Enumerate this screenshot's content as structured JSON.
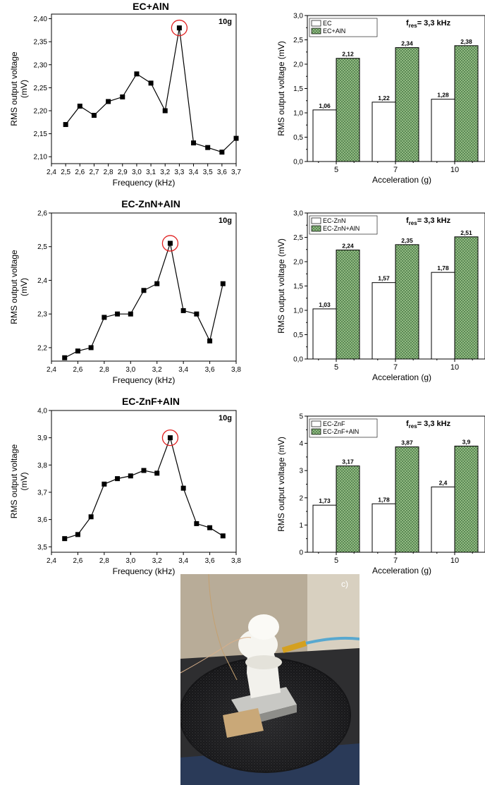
{
  "chart_data": [
    {
      "type": "line",
      "title": "EC+AlN",
      "xlabel": "Frequency (kHz)",
      "ylabel": "RMS output voltage (mV)",
      "annotation": "10g",
      "x": [
        2.5,
        2.6,
        2.7,
        2.8,
        2.9,
        3.0,
        3.1,
        3.2,
        3.3,
        3.4,
        3.5,
        3.6,
        3.7
      ],
      "y": [
        2.17,
        2.21,
        2.19,
        2.22,
        2.23,
        2.28,
        2.26,
        2.2,
        2.38,
        2.13,
        2.12,
        2.11,
        2.14
      ],
      "xlim": [
        2.4,
        3.7
      ],
      "ylim": [
        2.085,
        2.41
      ],
      "xticks": [
        "2,4",
        "2,5",
        "2,6",
        "2,7",
        "2,8",
        "2,9",
        "3,0",
        "3,1",
        "3,2",
        "3,3",
        "3,4",
        "3,5",
        "3,6",
        "3,7"
      ],
      "xtick_values": [
        2.4,
        2.5,
        2.6,
        2.7,
        2.8,
        2.9,
        3.0,
        3.1,
        3.2,
        3.3,
        3.4,
        3.5,
        3.6,
        3.7
      ],
      "yticks": [
        "2,10",
        "2,15",
        "2,20",
        "2,25",
        "2,30",
        "2,35",
        "2,40"
      ],
      "ytick_values": [
        2.1,
        2.15,
        2.2,
        2.25,
        2.3,
        2.35,
        2.4
      ],
      "highlight_x": 3.3
    },
    {
      "type": "bar",
      "title": "",
      "xlabel": "Acceleration (g)",
      "ylabel": "RMS output voltage (mV)",
      "annotation_main": "f",
      "annotation_sub": "res",
      "annotation_rest": "= 3,3 kHz",
      "categories": [
        "5",
        "7",
        "10"
      ],
      "series": [
        {
          "name": "EC",
          "values": [
            1.06,
            1.22,
            1.28
          ],
          "labels": [
            "1,06",
            "1,22",
            "1,28"
          ]
        },
        {
          "name": "EC+AlN",
          "values": [
            2.12,
            2.34,
            2.38
          ],
          "labels": [
            "2,12",
            "2,34",
            "2,38"
          ]
        }
      ],
      "ylim": [
        0,
        3.0
      ],
      "yticks": [
        "0,0",
        "0,5",
        "1,0",
        "1,5",
        "2,0",
        "2,5",
        "3,0"
      ],
      "ytick_values": [
        0,
        0.5,
        1.0,
        1.5,
        2.0,
        2.5,
        3.0
      ]
    },
    {
      "type": "line",
      "title": "EC-ZnN+AlN",
      "xlabel": "Frequency (kHz)",
      "ylabel": "RMS output voltage (mV)",
      "annotation": "10g",
      "x": [
        2.5,
        2.6,
        2.7,
        2.8,
        2.9,
        3.0,
        3.1,
        3.2,
        3.3,
        3.4,
        3.5,
        3.6,
        3.7
      ],
      "y": [
        2.17,
        2.19,
        2.2,
        2.29,
        2.3,
        2.3,
        2.37,
        2.39,
        2.51,
        2.31,
        2.3,
        2.22,
        2.39
      ],
      "xlim": [
        2.4,
        3.8
      ],
      "ylim": [
        2.16,
        2.6
      ],
      "xticks": [
        "2,4",
        "2,6",
        "2,8",
        "3,0",
        "3,2",
        "3,4",
        "3,6",
        "3,8"
      ],
      "xtick_values": [
        2.4,
        2.6,
        2.8,
        3.0,
        3.2,
        3.4,
        3.6,
        3.8
      ],
      "yticks": [
        "2,2",
        "2,3",
        "2,4",
        "2,5",
        "2,6"
      ],
      "ytick_values": [
        2.2,
        2.3,
        2.4,
        2.5,
        2.6
      ],
      "highlight_x": 3.3
    },
    {
      "type": "bar",
      "title": "",
      "xlabel": "Acceleration (g)",
      "ylabel": "RMS output voltage (mV)",
      "annotation_main": "f",
      "annotation_sub": "res",
      "annotation_rest": "= 3,3 kHz",
      "categories": [
        "5",
        "7",
        "10"
      ],
      "series": [
        {
          "name": "EC-ZnN",
          "values": [
            1.03,
            1.57,
            1.78
          ],
          "labels": [
            "1,03",
            "1,57",
            "1,78"
          ]
        },
        {
          "name": "EC-ZnN+AlN",
          "values": [
            2.24,
            2.35,
            2.51
          ],
          "labels": [
            "2,24",
            "2,35",
            "2,51"
          ]
        }
      ],
      "ylim": [
        0,
        3.0
      ],
      "yticks": [
        "0,0",
        "0,5",
        "1,0",
        "1,5",
        "2,0",
        "2,5",
        "3,0"
      ],
      "ytick_values": [
        0,
        0.5,
        1.0,
        1.5,
        2.0,
        2.5,
        3.0
      ]
    },
    {
      "type": "line",
      "title": "EC-ZnF+AlN",
      "xlabel": "Frequency (kHz)",
      "ylabel": "RMS output voltage (mV)",
      "annotation": "10g",
      "x": [
        2.5,
        2.6,
        2.7,
        2.8,
        2.9,
        3.0,
        3.1,
        3.2,
        3.3,
        3.4,
        3.5,
        3.6,
        3.7
      ],
      "y": [
        3.53,
        3.545,
        3.61,
        3.73,
        3.75,
        3.76,
        3.78,
        3.77,
        3.9,
        3.715,
        3.585,
        3.57,
        3.54
      ],
      "xlim": [
        2.4,
        3.8
      ],
      "ylim": [
        3.48,
        4.0
      ],
      "xticks": [
        "2,4",
        "2,6",
        "2,8",
        "3,0",
        "3,2",
        "3,4",
        "3,6",
        "3,8"
      ],
      "xtick_values": [
        2.4,
        2.6,
        2.8,
        3.0,
        3.2,
        3.4,
        3.6,
        3.8
      ],
      "yticks": [
        "3,5",
        "3,6",
        "3,7",
        "3,8",
        "3,9",
        "4,0"
      ],
      "ytick_values": [
        3.5,
        3.6,
        3.7,
        3.8,
        3.9,
        4.0
      ],
      "highlight_x": 3.3
    },
    {
      "type": "bar",
      "title": "",
      "xlabel": "Acceleration (g)",
      "ylabel": "RMS output voltage (mV)",
      "annotation_main": "f",
      "annotation_sub": "res",
      "annotation_rest": "= 3,3 kHz",
      "categories": [
        "5",
        "7",
        "10"
      ],
      "series": [
        {
          "name": "EC-ZnF",
          "values": [
            1.73,
            1.78,
            2.4
          ],
          "labels": [
            "1,73",
            "1,78",
            "2,4"
          ]
        },
        {
          "name": "EC-ZnF+AlN",
          "values": [
            3.17,
            3.87,
            3.9
          ],
          "labels": [
            "3,17",
            "3,87",
            "3,9"
          ]
        }
      ],
      "ylim": [
        0,
        5
      ],
      "yticks": [
        "0",
        "1",
        "2",
        "3",
        "4",
        "5"
      ],
      "ytick_values": [
        0,
        1,
        2,
        3,
        4,
        5
      ]
    }
  ],
  "photo": {
    "panel_label": "c)",
    "colors": {
      "background": "#7a6a58",
      "foam": "#1c1c1e",
      "block": "#c8c8c4",
      "mount": "#f0efe9",
      "cable": "#58a8cf"
    }
  },
  "colors": {
    "hatch": "#98c088",
    "hatch_dark": "#3a6a38",
    "highlight": "#e02020",
    "marker": "#000000"
  }
}
